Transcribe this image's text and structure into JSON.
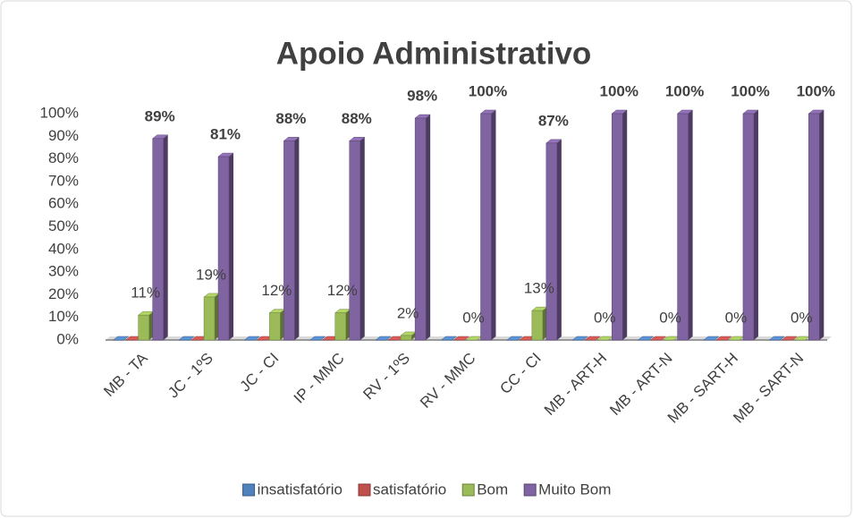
{
  "chart_data": {
    "type": "bar3d",
    "title": "Apoio Administrativo",
    "categories": [
      "MB - TA",
      "JC - 1ºS",
      "JC - CI",
      "IP - MMC",
      "RV - 1ºS",
      "RV - MMC",
      "CC - CI",
      "MB - ART-H",
      "MB - ART-N",
      "MB - SART-H",
      "MB - SART-N"
    ],
    "series": [
      {
        "name": "insatisfatório",
        "color": "#4f81bd",
        "values": [
          0,
          0,
          0,
          0,
          0,
          0,
          0,
          0,
          0,
          0,
          0
        ]
      },
      {
        "name": "satisfatório",
        "color": "#c0504d",
        "values": [
          0,
          0,
          0,
          0,
          0,
          0,
          0,
          0,
          0,
          0,
          0
        ]
      },
      {
        "name": "Bom",
        "color": "#9bbb59",
        "values": [
          11,
          19,
          12,
          12,
          2,
          0,
          13,
          0,
          0,
          0,
          0
        ],
        "value_labels": [
          "11%",
          "19%",
          "12%",
          "12%",
          "2%",
          "0%",
          "13%",
          "0%",
          "0%",
          "0%",
          "0%"
        ]
      },
      {
        "name": "Muito Bom",
        "color": "#8064a2",
        "values": [
          89,
          81,
          88,
          88,
          98,
          100,
          87,
          100,
          100,
          100,
          100
        ],
        "value_labels": [
          "89%",
          "81%",
          "88%",
          "88%",
          "98%",
          "100%",
          "87%",
          "100%",
          "100%",
          "100%",
          "100%"
        ]
      }
    ],
    "ylim": [
      0,
      100
    ],
    "yticks": [
      {
        "value": 0,
        "label": "0%"
      },
      {
        "value": 10,
        "label": "10%"
      },
      {
        "value": 20,
        "label": "20%"
      },
      {
        "value": 30,
        "label": "30%"
      },
      {
        "value": 40,
        "label": "40%"
      },
      {
        "value": 50,
        "label": "50%"
      },
      {
        "value": 60,
        "label": "60%"
      },
      {
        "value": 70,
        "label": "70%"
      },
      {
        "value": 80,
        "label": "80%"
      },
      {
        "value": 90,
        "label": "90%"
      },
      {
        "value": 100,
        "label": "100%"
      }
    ],
    "grid": false,
    "legend": "bottom"
  }
}
